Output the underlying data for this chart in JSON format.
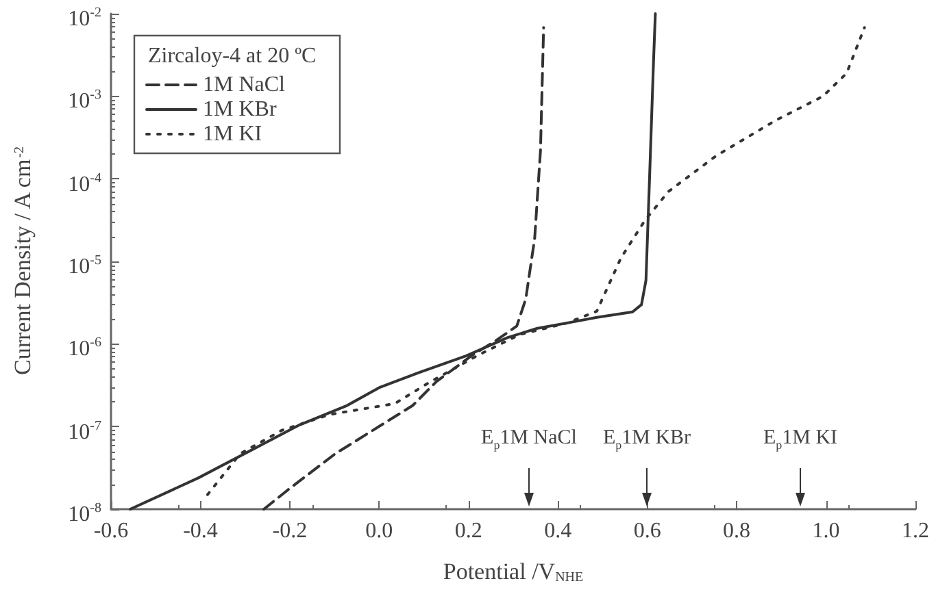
{
  "chart_data": {
    "type": "line",
    "xlabel": "Potential /V$_{NHE}$",
    "ylabel": "Current Density / A cm$^{-2}$",
    "legend_title": "Zircaloy-4 at 20 ºC",
    "legend": "top left",
    "log": true,
    "grid": false,
    "marker": "none",
    "xlim": [
      -0.6,
      1.2
    ],
    "xticks": [
      {
        "value": -0.6,
        "label": "-0.6"
      },
      {
        "value": -0.4,
        "label": "-0.4"
      },
      {
        "value": -0.2,
        "label": "-0.2"
      },
      {
        "value": 0,
        "label": "0.0"
      },
      {
        "value": 0.2,
        "label": "0.2"
      },
      {
        "value": 0.4,
        "label": "0.4"
      },
      {
        "value": 0.6,
        "label": "0.6"
      },
      {
        "value": 0.8,
        "label": "0.8"
      },
      {
        "value": 1,
        "label": "1.0"
      },
      {
        "value": 1.2,
        "label": "1.2"
      }
    ],
    "ylim": [
      1e-08,
      0.01
    ],
    "yticks": [
      {
        "value": 1e-08,
        "label": "10$^{-8}$"
      },
      {
        "value": 1e-07,
        "label": "10$^{-7}$"
      },
      {
        "value": 1e-06,
        "label": "10$^{-6}$"
      },
      {
        "value": 1e-05,
        "label": "10$^{-5}$"
      },
      {
        "value": 0.0001,
        "label": "10$^{-4}$"
      },
      {
        "value": 0.001,
        "label": "10$^{-3}$"
      },
      {
        "value": 0.01,
        "label": "10$^{-2}$"
      }
    ],
    "series": [
      {
        "name": "1M NaCl",
        "color": "#333333",
        "line_style": "dashed",
        "x": [
          -0.258,
          -0.205,
          -0.098,
          0.008,
          0.075,
          0.128,
          0.208,
          0.261,
          0.308,
          0.328,
          0.348,
          0.361,
          0.368
        ],
        "values": [
          1e-08,
          1.7e-08,
          4.7e-08,
          1.07e-07,
          1.8e-07,
          3.5e-07,
          7.3e-07,
          1.1e-06,
          1.65e-06,
          3.5e-06,
          1.9e-05,
          0.00022,
          0.0068
        ]
      },
      {
        "name": "1M KBr",
        "color": "#333333",
        "line_style": "solid",
        "x": [
          -0.557,
          -0.404,
          -0.178,
          -0.072,
          0.002,
          0.088,
          0.195,
          0.288,
          0.354,
          0.421,
          0.487,
          0.567,
          0.587,
          0.597,
          0.605,
          0.614,
          0.618
        ],
        "values": [
          1e-08,
          2.4e-08,
          1.05e-07,
          1.8e-07,
          3e-07,
          4.5e-07,
          7.2e-07,
          1.2e-06,
          1.55e-06,
          1.8e-06,
          2.1e-06,
          2.45e-06,
          3e-06,
          5.9e-06,
          0.0001,
          0.0027,
          0.01
        ]
      },
      {
        "name": "1M KI",
        "color": "#333333",
        "line_style": "dotted",
        "x": [
          -0.384,
          -0.311,
          -0.218,
          -0.111,
          0.035,
          0.115,
          0.221,
          0.314,
          0.421,
          0.487,
          0.541,
          0.594,
          0.647,
          0.754,
          0.887,
          0.993,
          1.046,
          1.086
        ],
        "values": [
          1.5e-08,
          4.7e-08,
          9e-08,
          1.4e-07,
          1.9e-07,
          3.5e-07,
          7.3e-07,
          1.3e-06,
          1.8e-06,
          2.5e-06,
          1.1e-05,
          3.1e-05,
          7e-05,
          0.00019,
          0.00051,
          0.001,
          0.0019,
          0.0068
        ]
      }
    ],
    "annotations": [
      "E$_{p}$1M NaCl",
      "E$_{p}$1M KBr",
      "E$_{p}$1M KI"
    ]
  }
}
